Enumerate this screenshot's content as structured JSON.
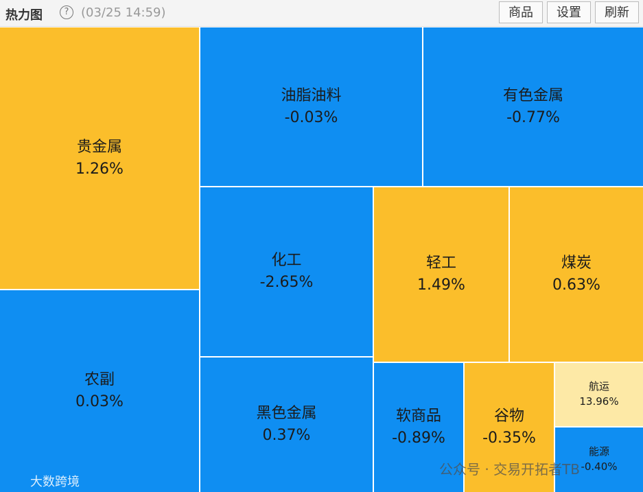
{
  "header": {
    "title": "热力图",
    "help": "?",
    "timestamp": "(03/25 14:59)",
    "buttons": [
      "商品",
      "设置",
      "刷新"
    ]
  },
  "tiles": [
    {
      "label": "贵金属",
      "value": "1.26%",
      "color": "#fbbe2b"
    },
    {
      "label": "农副",
      "value": "0.03%",
      "color": "#0f8ef2"
    },
    {
      "label": "油脂油料",
      "value": "-0.03%",
      "color": "#0f8ef2"
    },
    {
      "label": "有色金属",
      "value": "-0.77%",
      "color": "#0f8ef2"
    },
    {
      "label": "化工",
      "value": "-2.65%",
      "color": "#0f8ef2"
    },
    {
      "label": "轻工",
      "value": "1.49%",
      "color": "#fbbe2b"
    },
    {
      "label": "煤炭",
      "value": "0.63%",
      "color": "#fbbe2b"
    },
    {
      "label": "黑色金属",
      "value": "0.37%",
      "color": "#0f8ef2"
    },
    {
      "label": "软商品",
      "value": "-0.89%",
      "color": "#0f8ef2"
    },
    {
      "label": "谷物",
      "value": "-0.35%",
      "color": "#fbbe2b"
    },
    {
      "label": "航运",
      "value": "13.96%",
      "color": "#fde9a6"
    },
    {
      "label": "能源",
      "value": "-0.40%",
      "color": "#0f8ef2"
    }
  ],
  "watermarks": [
    "大数跨境",
    "公众号 · 交易开拓者TB"
  ]
}
